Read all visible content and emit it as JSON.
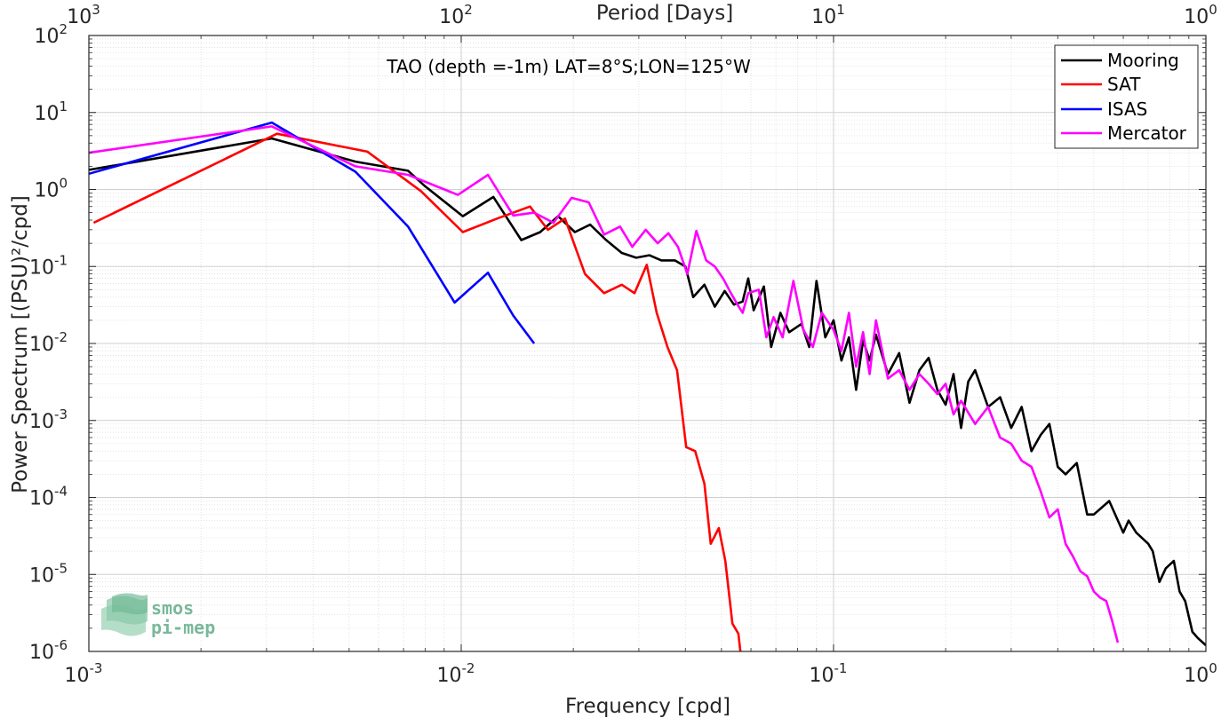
{
  "chart_data": {
    "type": "line",
    "title": "TAO (depth =-1m) LAT=8°S;LON=125°W",
    "xlabel": "Frequency [cpd]",
    "ylabel": "Power Spectrum [(PSU)²/cpd]",
    "x2label": "Period [Days]",
    "xscale": "log",
    "yscale": "log",
    "xlim": [
      0.001,
      1
    ],
    "ylim": [
      1e-06,
      100
    ],
    "grid": true,
    "legend_position": "top-right",
    "x_ticks": [
      {
        "base": "10",
        "exp": "-3"
      },
      {
        "base": "10",
        "exp": "-2"
      },
      {
        "base": "10",
        "exp": "-1"
      },
      {
        "base": "10",
        "exp": "0"
      }
    ],
    "x2_ticks": [
      {
        "base": "10",
        "exp": "3"
      },
      {
        "base": "10",
        "exp": "2"
      },
      {
        "base": "10",
        "exp": "1"
      },
      {
        "base": "10",
        "exp": "0"
      }
    ],
    "y_ticks": [
      {
        "base": "10",
        "exp": "-6"
      },
      {
        "base": "10",
        "exp": "-5"
      },
      {
        "base": "10",
        "exp": "-4"
      },
      {
        "base": "10",
        "exp": "-3"
      },
      {
        "base": "10",
        "exp": "-2"
      },
      {
        "base": "10",
        "exp": "-1"
      },
      {
        "base": "10",
        "exp": "0"
      },
      {
        "base": "10",
        "exp": "1"
      },
      {
        "base": "10",
        "exp": "2"
      }
    ],
    "series": [
      {
        "name": "Mooring",
        "color": "#000000",
        "points": [
          [
            0.001,
            1.8
          ],
          [
            0.0031,
            4.6
          ],
          [
            0.0052,
            2.3
          ],
          [
            0.0072,
            1.75
          ],
          [
            0.008,
            1.1
          ],
          [
            0.0101,
            0.45
          ],
          [
            0.0122,
            0.8
          ],
          [
            0.0145,
            0.22
          ],
          [
            0.0163,
            0.28
          ],
          [
            0.0182,
            0.45
          ],
          [
            0.0202,
            0.28
          ],
          [
            0.0222,
            0.35
          ],
          [
            0.0245,
            0.22
          ],
          [
            0.027,
            0.15
          ],
          [
            0.0295,
            0.13
          ],
          [
            0.032,
            0.14
          ],
          [
            0.0345,
            0.12
          ],
          [
            0.0375,
            0.12
          ],
          [
            0.04,
            0.1
          ],
          [
            0.042,
            0.04
          ],
          [
            0.045,
            0.058
          ],
          [
            0.048,
            0.03
          ],
          [
            0.051,
            0.048
          ],
          [
            0.054,
            0.032
          ],
          [
            0.057,
            0.035
          ],
          [
            0.059,
            0.07
          ],
          [
            0.061,
            0.027
          ],
          [
            0.065,
            0.055
          ],
          [
            0.068,
            0.009
          ],
          [
            0.072,
            0.025
          ],
          [
            0.076,
            0.014
          ],
          [
            0.082,
            0.018
          ],
          [
            0.086,
            0.009
          ],
          [
            0.09,
            0.065
          ],
          [
            0.095,
            0.012
          ],
          [
            0.1,
            0.02
          ],
          [
            0.105,
            0.006
          ],
          [
            0.11,
            0.012
          ],
          [
            0.115,
            0.0025
          ],
          [
            0.12,
            0.011
          ],
          [
            0.125,
            0.006
          ],
          [
            0.13,
            0.013
          ],
          [
            0.14,
            0.004
          ],
          [
            0.15,
            0.0075
          ],
          [
            0.16,
            0.0017
          ],
          [
            0.17,
            0.0045
          ],
          [
            0.18,
            0.0065
          ],
          [
            0.19,
            0.0025
          ],
          [
            0.2,
            0.0016
          ],
          [
            0.21,
            0.004
          ],
          [
            0.22,
            0.0008
          ],
          [
            0.23,
            0.0032
          ],
          [
            0.24,
            0.0045
          ],
          [
            0.26,
            0.0015
          ],
          [
            0.28,
            0.002
          ],
          [
            0.3,
            0.0008
          ],
          [
            0.32,
            0.0015
          ],
          [
            0.34,
            0.0004
          ],
          [
            0.36,
            0.00065
          ],
          [
            0.38,
            0.0009
          ],
          [
            0.4,
            0.00025
          ],
          [
            0.42,
            0.0002
          ],
          [
            0.45,
            0.00028
          ],
          [
            0.48,
            6e-05
          ],
          [
            0.5,
            6e-05
          ],
          [
            0.55,
            9e-05
          ],
          [
            0.6,
            3.5e-05
          ],
          [
            0.62,
            5e-05
          ],
          [
            0.65,
            3.5e-05
          ],
          [
            0.7,
            2.5e-05
          ],
          [
            0.72,
            2e-05
          ],
          [
            0.75,
            8e-06
          ],
          [
            0.78,
            1.2e-05
          ],
          [
            0.82,
            1.5e-05
          ],
          [
            0.85,
            6e-06
          ],
          [
            0.88,
            4.5e-06
          ],
          [
            0.92,
            1.8e-06
          ],
          [
            0.95,
            1.5e-06
          ],
          [
            1.0,
            1.2e-06
          ]
        ]
      },
      {
        "name": "SAT",
        "color": "#ff0000",
        "points": [
          [
            0.00103,
            0.37
          ],
          [
            0.0032,
            5.3
          ],
          [
            0.0056,
            3.1
          ],
          [
            0.0078,
            0.95
          ],
          [
            0.0101,
            0.28
          ],
          [
            0.0125,
            0.42
          ],
          [
            0.0153,
            0.6
          ],
          [
            0.0171,
            0.3
          ],
          [
            0.019,
            0.42
          ],
          [
            0.0215,
            0.08
          ],
          [
            0.0242,
            0.045
          ],
          [
            0.027,
            0.058
          ],
          [
            0.0292,
            0.045
          ],
          [
            0.0315,
            0.105
          ],
          [
            0.0335,
            0.025
          ],
          [
            0.0358,
            0.009
          ],
          [
            0.038,
            0.0045
          ],
          [
            0.0402,
            0.00045
          ],
          [
            0.0425,
            0.0004
          ],
          [
            0.045,
            0.00015
          ],
          [
            0.0468,
            2.5e-05
          ],
          [
            0.0492,
            4e-05
          ],
          [
            0.0512,
            1.5e-05
          ],
          [
            0.0535,
            2.3e-06
          ],
          [
            0.0555,
            1.7e-06
          ],
          [
            0.0565,
            8e-07
          ]
        ]
      },
      {
        "name": "ISAS",
        "color": "#0000ff",
        "points": [
          [
            0.001,
            1.6
          ],
          [
            0.0031,
            7.4
          ],
          [
            0.0052,
            1.7
          ],
          [
            0.0072,
            0.33
          ],
          [
            0.0096,
            0.034
          ],
          [
            0.0118,
            0.083
          ],
          [
            0.0138,
            0.023
          ],
          [
            0.0157,
            0.01
          ]
        ]
      },
      {
        "name": "Mercator",
        "color": "#ff00ff",
        "points": [
          [
            0.001,
            3.0
          ],
          [
            0.0031,
            6.6
          ],
          [
            0.0052,
            2.0
          ],
          [
            0.0072,
            1.55
          ],
          [
            0.0098,
            0.85
          ],
          [
            0.0118,
            1.55
          ],
          [
            0.0138,
            0.46
          ],
          [
            0.0157,
            0.5
          ],
          [
            0.0177,
            0.37
          ],
          [
            0.0198,
            0.78
          ],
          [
            0.022,
            0.68
          ],
          [
            0.0242,
            0.26
          ],
          [
            0.0267,
            0.33
          ],
          [
            0.0288,
            0.18
          ],
          [
            0.0313,
            0.3
          ],
          [
            0.0337,
            0.2
          ],
          [
            0.036,
            0.27
          ],
          [
            0.0382,
            0.18
          ],
          [
            0.0405,
            0.08
          ],
          [
            0.0428,
            0.29
          ],
          [
            0.0455,
            0.12
          ],
          [
            0.048,
            0.1
          ],
          [
            0.0505,
            0.07
          ],
          [
            0.053,
            0.045
          ],
          [
            0.055,
            0.033
          ],
          [
            0.057,
            0.025
          ],
          [
            0.059,
            0.045
          ],
          [
            0.063,
            0.05
          ],
          [
            0.066,
            0.012
          ],
          [
            0.069,
            0.022
          ],
          [
            0.073,
            0.012
          ],
          [
            0.078,
            0.065
          ],
          [
            0.083,
            0.015
          ],
          [
            0.088,
            0.009
          ],
          [
            0.093,
            0.025
          ],
          [
            0.1,
            0.015
          ],
          [
            0.105,
            0.008
          ],
          [
            0.11,
            0.025
          ],
          [
            0.115,
            0.005
          ],
          [
            0.12,
            0.014
          ],
          [
            0.125,
            0.004
          ],
          [
            0.13,
            0.02
          ],
          [
            0.14,
            0.0035
          ],
          [
            0.15,
            0.0045
          ],
          [
            0.16,
            0.0025
          ],
          [
            0.17,
            0.004
          ],
          [
            0.18,
            0.003
          ],
          [
            0.19,
            0.0022
          ],
          [
            0.2,
            0.003
          ],
          [
            0.21,
            0.0012
          ],
          [
            0.22,
            0.0018
          ],
          [
            0.24,
            0.0009
          ],
          [
            0.26,
            0.0015
          ],
          [
            0.28,
            0.0006
          ],
          [
            0.3,
            0.0005
          ],
          [
            0.32,
            0.0003
          ],
          [
            0.34,
            0.00025
          ],
          [
            0.36,
            0.00012
          ],
          [
            0.38,
            5.5e-05
          ],
          [
            0.4,
            7e-05
          ],
          [
            0.42,
            2.5e-05
          ],
          [
            0.44,
            1.7e-05
          ],
          [
            0.46,
            1.1e-05
          ],
          [
            0.48,
            9.5e-06
          ],
          [
            0.5,
            6e-06
          ],
          [
            0.52,
            5e-06
          ],
          [
            0.54,
            4.5e-06
          ],
          [
            0.56,
            2.5e-06
          ],
          [
            0.58,
            1.3e-06
          ]
        ]
      }
    ]
  },
  "logo": {
    "line1": "smos",
    "line2": "pi-mep"
  }
}
